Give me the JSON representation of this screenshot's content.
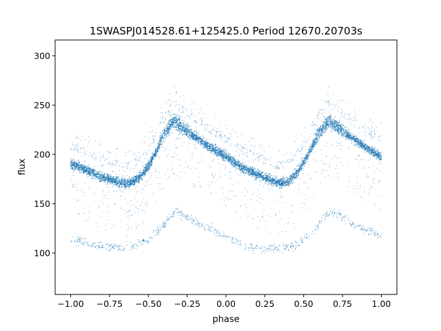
{
  "chart_data": {
    "type": "scatter",
    "title": "1SWASPJ014528.61+125425.0 Period 12670.20703s",
    "xlabel": "phase",
    "ylabel": "flux",
    "xlim": [
      -1.1,
      1.1
    ],
    "ylim": [
      58,
      316
    ],
    "xticks": [
      -1.0,
      -0.75,
      -0.5,
      -0.25,
      0.0,
      0.25,
      0.5,
      0.75,
      1.0
    ],
    "xtick_labels": [
      "−1.00",
      "−0.75",
      "−0.50",
      "−0.25",
      "0.00",
      "0.25",
      "0.50",
      "0.75",
      "1.00"
    ],
    "yticks": [
      100,
      150,
      200,
      250,
      300
    ],
    "ytick_labels": [
      "100",
      "150",
      "200",
      "250",
      "300"
    ],
    "grid": false,
    "point_color": "#1f77b4",
    "series": [
      {
        "description_points": "phase-folded light curve; main sequence and a fainter secondary track",
        "main_track": {
          "x": [
            -1.0,
            -0.9,
            -0.8,
            -0.7,
            -0.65,
            -0.6,
            -0.55,
            -0.5,
            -0.45,
            -0.4,
            -0.35,
            -0.33,
            -0.3,
            -0.25,
            -0.2,
            -0.1,
            0.0,
            0.1,
            0.2,
            0.3,
            0.35,
            0.4,
            0.45,
            0.5,
            0.55,
            0.6,
            0.65,
            0.67,
            0.7,
            0.75,
            0.8,
            0.9,
            1.0
          ],
          "y": [
            191,
            184,
            177,
            172,
            170,
            172,
            178,
            188,
            203,
            220,
            232,
            234,
            230,
            224,
            218,
            207,
            198,
            187,
            180,
            173,
            171,
            172,
            180,
            192,
            207,
            222,
            232,
            234,
            230,
            224,
            218,
            207,
            197
          ]
        },
        "secondary_track": {
          "x": [
            -1.0,
            -0.85,
            -0.75,
            -0.6,
            -0.5,
            -0.4,
            -0.33,
            -0.25,
            -0.15,
            -0.05,
            0.05,
            0.15,
            0.3,
            0.45,
            0.55,
            0.67,
            0.75,
            0.85,
            1.0
          ],
          "y": [
            114,
            108,
            106,
            107,
            114,
            128,
            143,
            137,
            128,
            121,
            112,
            106,
            104,
            108,
            120,
            143,
            136,
            127,
            117
          ]
        }
      }
    ]
  }
}
